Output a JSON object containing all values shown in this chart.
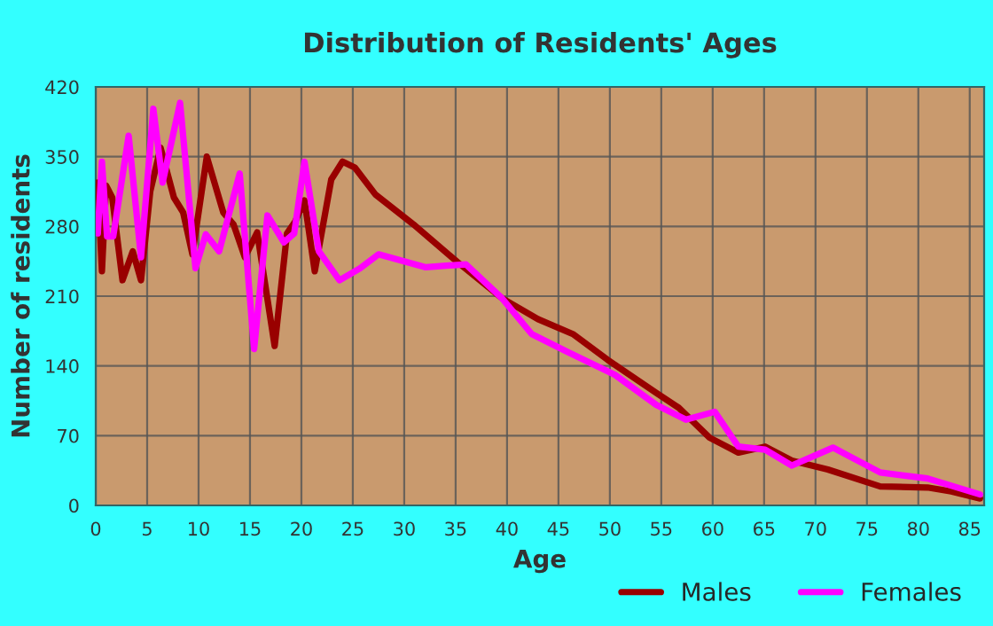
{
  "chart_data": {
    "type": "line",
    "title": "Distribution of Residents' Ages",
    "xlabel": "Age",
    "ylabel": "Number of residents",
    "xlim": [
      0,
      86.4
    ],
    "xticks": [
      0,
      5,
      10,
      15,
      20,
      25,
      30,
      35,
      40,
      45,
      50,
      55,
      60,
      65,
      70,
      75,
      80,
      85
    ],
    "ylim": [
      0,
      420
    ],
    "yticks": [
      0,
      70,
      140,
      210,
      280,
      350,
      420
    ],
    "grid": true,
    "legend": "bottom",
    "line_style": "solid",
    "marker": "none",
    "series": [
      {
        "name": "Males",
        "color": "#990000",
        "x": [
          0.2,
          0.6,
          1,
          1.6,
          2.6,
          3.6,
          4.4,
          5.3,
          6.3,
          7.6,
          8.5,
          9.4,
          10.8,
          12.4,
          13.4,
          14.5,
          15.7,
          17.4,
          18.6,
          19.4,
          20.3,
          21.3,
          22.9,
          24,
          25.2,
          27.2,
          30.9,
          35.2,
          39.5,
          43,
          46.4,
          49.8,
          54.5,
          56.7,
          59.7,
          62.5,
          65.1,
          67.7,
          71.2,
          76.3,
          80.9,
          83.2,
          86
        ],
        "values": [
          324,
          235,
          321,
          309,
          226,
          255,
          226,
          315,
          359,
          309,
          294,
          252,
          350,
          294,
          282,
          249,
          274,
          160,
          273,
          285,
          306,
          235,
          327,
          345,
          339,
          312,
          282,
          244,
          208,
          187,
          172,
          146,
          113,
          98,
          68,
          53,
          59,
          45,
          36,
          19,
          18,
          14,
          7
        ]
      },
      {
        "name": "Females",
        "color": "#ff00ff",
        "x": [
          0.2,
          0.6,
          1.1,
          1.7,
          3.2,
          4.4,
          5.6,
          6.5,
          8.2,
          9.7,
          10.7,
          12,
          14,
          15.4,
          16.7,
          18.3,
          19.3,
          20.3,
          21.7,
          23.7,
          25.7,
          27.5,
          32.1,
          36,
          39.5,
          42.4,
          45.9,
          50.5,
          54.5,
          57.4,
          60.2,
          62.5,
          65.1,
          67.7,
          71.7,
          76.3,
          80.9,
          86
        ],
        "values": [
          273,
          345,
          270,
          270,
          371,
          249,
          398,
          324,
          404,
          238,
          272,
          255,
          333,
          157,
          291,
          264,
          273,
          345,
          255,
          226,
          238,
          252,
          239,
          242,
          208,
          172,
          154,
          131,
          101,
          86,
          94,
          59,
          56,
          40,
          58,
          33,
          27,
          11
        ]
      }
    ]
  }
}
